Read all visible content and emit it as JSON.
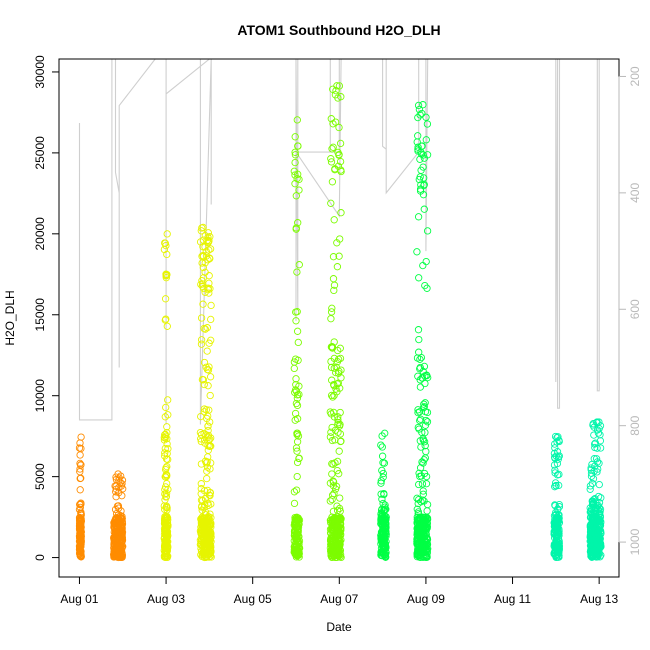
{
  "chart_data": {
    "type": "scatter",
    "title": "ATOM1 Southbound H2O_DLH",
    "xlabel": "Date",
    "ylabel": "H2O_DLH",
    "xlim": [
      "2016-07-31 12:40",
      "2016-08-13 11:00"
    ],
    "ylim": [
      -1200,
      30800
    ],
    "x_ticks": [
      "Aug 01",
      "Aug 03",
      "Aug 05",
      "Aug 07",
      "Aug 09",
      "Aug 11",
      "Aug 13"
    ],
    "x_tick_dates": [
      "2016-08-01",
      "2016-08-03",
      "2016-08-05",
      "2016-08-07",
      "2016-08-09",
      "2016-08-11",
      "2016-08-13"
    ],
    "y_ticks": [
      0,
      5000,
      10000,
      15000,
      20000,
      25000,
      30000
    ],
    "y2_label": "",
    "y2_ticks": [
      200,
      400,
      600,
      800,
      1000
    ],
    "y2_lim": [
      1060,
      170
    ],
    "y2_reversed": true,
    "grid": false,
    "legend": "none",
    "marker": "open-circle",
    "secondary_line_color": "#cfcfcf",
    "series": [
      {
        "color": "#FF8C00",
        "x_range": [
          "2016-08-01 00:00",
          "2016-08-01 01:00"
        ],
        "y_max": 7500
      },
      {
        "color": "#FF8C00",
        "x_range": [
          "2016-08-01 19:00",
          "2016-08-02 00:00"
        ],
        "y_max": 5200
      },
      {
        "color": "#E6F400",
        "x_range": [
          "2016-08-02 23:00",
          "2016-08-03 01:00"
        ],
        "y_max": 20100
      },
      {
        "color": "#E6F400",
        "x_range": [
          "2016-08-03 19:00",
          "2016-08-04 01:00"
        ],
        "y_max": 20400
      },
      {
        "color": "#7CFC00",
        "x_range": [
          "2016-08-05 23:00",
          "2016-08-06 02:00"
        ],
        "y_max": 27900
      },
      {
        "color": "#7CFC00",
        "x_range": [
          "2016-08-06 19:00",
          "2016-08-07 01:00"
        ],
        "y_max": 29600
      },
      {
        "color": "#00FF44",
        "x_range": [
          "2016-08-07 23:00",
          "2016-08-08 02:00"
        ],
        "y_max": 7700
      },
      {
        "color": "#00FF44",
        "x_range": [
          "2016-08-08 19:00",
          "2016-08-09 01:00"
        ],
        "y_max": 28400
      },
      {
        "color": "#00F5AA",
        "x_range": [
          "2016-08-11 23:00",
          "2016-08-12 02:00"
        ],
        "y_max": 7500
      },
      {
        "color": "#00F5AA",
        "x_range": [
          "2016-08-12 19:00",
          "2016-08-13 01:00"
        ],
        "y_max": 8400
      }
    ],
    "secondary_line": [
      [
        "2016-08-01 00:00",
        600
      ],
      [
        "2016-08-01 00:00",
        280
      ],
      [
        "2016-08-01 00:00",
        790
      ],
      [
        "2016-08-01 18:00",
        790
      ],
      [
        "2016-08-01 18:00",
        730
      ],
      [
        "2016-08-01 18:00",
        170
      ],
      [
        "2016-08-01 20:00",
        170
      ],
      [
        "2016-08-01 20:00",
        365
      ],
      [
        "2016-08-01 22:00",
        400
      ],
      [
        "2016-08-01 22:00",
        700
      ],
      [
        "2016-08-01 22:00",
        250
      ],
      [
        "2016-08-02 18:00",
        170
      ],
      [
        "2016-08-03 00:00",
        170
      ],
      [
        "2016-08-03 00:00",
        798
      ],
      [
        "2016-08-03 00:00",
        230
      ],
      [
        "2016-08-04 00:00",
        170
      ],
      [
        "2016-08-03 19:00",
        170
      ],
      [
        "2016-08-03 19:00",
        798
      ],
      [
        "2016-08-04 01:00",
        170
      ],
      [
        "2016-08-04 01:00",
        420
      ],
      [
        "2016-08-04 01:00",
        170
      ],
      [
        "2016-08-04 12:00",
        170
      ],
      [
        "2016-08-06 00:00",
        170
      ],
      [
        "2016-08-06 00:00",
        620
      ],
      [
        "2016-08-06 00:00",
        170
      ],
      [
        "2016-08-06 01:00",
        600
      ],
      [
        "2016-08-06 01:00",
        170
      ],
      [
        "2016-08-06 19:00",
        170
      ],
      [
        "2016-08-06 19:00",
        330
      ],
      [
        "2016-08-06 19:00",
        170
      ],
      [
        "2016-08-07 00:00",
        170
      ],
      [
        "2016-08-07 00:00",
        330
      ],
      [
        "2016-08-06 00:00",
        330
      ],
      [
        "2016-08-07 00:00",
        440
      ],
      [
        "2016-08-07 01:00",
        170
      ],
      [
        "2016-08-08 00:00",
        170
      ],
      [
        "2016-08-08 00:00",
        320
      ],
      [
        "2016-08-08 02:00",
        325
      ],
      [
        "2016-08-08 02:00",
        170
      ],
      [
        "2016-08-08 02:00",
        400
      ],
      [
        "2016-08-08 20:00",
        330
      ],
      [
        "2016-08-08 20:00",
        170
      ],
      [
        "2016-08-09 00:00",
        170
      ],
      [
        "2016-08-09 00:00",
        500
      ],
      [
        "2016-08-09 01:00",
        170
      ],
      [
        "2016-08-12 00:00",
        170
      ],
      [
        "2016-08-12 00:00",
        725
      ],
      [
        "2016-08-12 01:00",
        170
      ],
      [
        "2016-08-12 01:00",
        770
      ],
      [
        "2016-08-12 02:00",
        770
      ],
      [
        "2016-08-12 02:00",
        170
      ],
      [
        "2016-08-12 23:00",
        170
      ],
      [
        "2016-08-12 23:00",
        740
      ],
      [
        "2016-08-13 00:00",
        740
      ],
      [
        "2016-08-13 00:00",
        170
      ]
    ]
  }
}
